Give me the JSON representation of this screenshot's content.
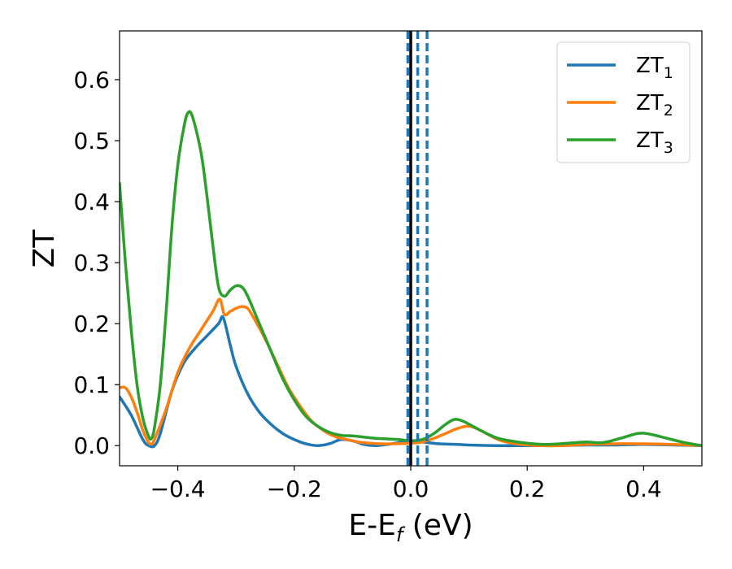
{
  "chart_data": {
    "type": "line",
    "xlabel": "E-E",
    "xlabel_sub": "f",
    "xlabel_unit": " (eV)",
    "ylabel": "ZT",
    "xlim": [
      -0.5,
      0.5
    ],
    "ylim": [
      -0.033,
      0.68
    ],
    "xticks": [
      -0.4,
      -0.2,
      0.0,
      0.2,
      0.4
    ],
    "xtick_labels": [
      "−0.4",
      "−0.2",
      "0.0",
      "0.2",
      "0.4"
    ],
    "yticks": [
      0.0,
      0.1,
      0.2,
      0.3,
      0.4,
      0.5,
      0.6
    ],
    "ytick_labels": [
      "0.0",
      "0.1",
      "0.2",
      "0.3",
      "0.4",
      "0.5",
      "0.6"
    ],
    "grid": false,
    "legend_position": "top-right",
    "series": [
      {
        "name": "ZT",
        "name_sub": "1",
        "color": "#1f77b4",
        "points": [
          [
            -0.5,
            0.08
          ],
          [
            -0.48,
            0.05
          ],
          [
            -0.46,
            0.01
          ],
          [
            -0.45,
            0.0
          ],
          [
            -0.44,
            0.0
          ],
          [
            -0.43,
            0.02
          ],
          [
            -0.41,
            0.09
          ],
          [
            -0.39,
            0.135
          ],
          [
            -0.37,
            0.16
          ],
          [
            -0.35,
            0.18
          ],
          [
            -0.33,
            0.2
          ],
          [
            -0.322,
            0.21
          ],
          [
            -0.31,
            0.165
          ],
          [
            -0.3,
            0.13
          ],
          [
            -0.28,
            0.085
          ],
          [
            -0.26,
            0.055
          ],
          [
            -0.24,
            0.035
          ],
          [
            -0.22,
            0.02
          ],
          [
            -0.2,
            0.01
          ],
          [
            -0.18,
            0.003
          ],
          [
            -0.16,
            0.0
          ],
          [
            -0.14,
            0.003
          ],
          [
            -0.12,
            0.01
          ],
          [
            -0.1,
            0.008
          ],
          [
            -0.08,
            0.002
          ],
          [
            -0.06,
            0.0
          ],
          [
            -0.04,
            0.002
          ],
          [
            -0.02,
            0.005
          ],
          [
            0.0,
            0.008
          ],
          [
            0.02,
            0.006
          ],
          [
            0.05,
            0.003
          ],
          [
            0.08,
            0.002
          ],
          [
            0.1,
            0.001
          ],
          [
            0.15,
            0.0
          ],
          [
            0.2,
            0.0
          ],
          [
            0.25,
            0.0
          ],
          [
            0.3,
            0.001
          ],
          [
            0.35,
            0.001
          ],
          [
            0.4,
            0.002
          ],
          [
            0.45,
            0.001
          ],
          [
            0.5,
            0.0
          ]
        ]
      },
      {
        "name": "ZT",
        "name_sub": "2",
        "color": "#ff7f0e",
        "points": [
          [
            -0.5,
            0.095
          ],
          [
            -0.49,
            0.095
          ],
          [
            -0.48,
            0.08
          ],
          [
            -0.47,
            0.055
          ],
          [
            -0.46,
            0.025
          ],
          [
            -0.45,
            0.005
          ],
          [
            -0.445,
            0.003
          ],
          [
            -0.44,
            0.01
          ],
          [
            -0.42,
            0.06
          ],
          [
            -0.4,
            0.12
          ],
          [
            -0.38,
            0.16
          ],
          [
            -0.36,
            0.19
          ],
          [
            -0.34,
            0.22
          ],
          [
            -0.328,
            0.24
          ],
          [
            -0.32,
            0.215
          ],
          [
            -0.31,
            0.22
          ],
          [
            -0.3,
            0.225
          ],
          [
            -0.29,
            0.228
          ],
          [
            -0.28,
            0.225
          ],
          [
            -0.27,
            0.21
          ],
          [
            -0.25,
            0.175
          ],
          [
            -0.23,
            0.135
          ],
          [
            -0.21,
            0.095
          ],
          [
            -0.19,
            0.065
          ],
          [
            -0.17,
            0.04
          ],
          [
            -0.15,
            0.025
          ],
          [
            -0.13,
            0.015
          ],
          [
            -0.11,
            0.01
          ],
          [
            -0.09,
            0.006
          ],
          [
            -0.07,
            0.004
          ],
          [
            -0.05,
            0.003
          ],
          [
            -0.03,
            0.003
          ],
          [
            0.0,
            0.004
          ],
          [
            0.02,
            0.006
          ],
          [
            0.04,
            0.012
          ],
          [
            0.06,
            0.02
          ],
          [
            0.08,
            0.028
          ],
          [
            0.1,
            0.032
          ],
          [
            0.12,
            0.025
          ],
          [
            0.15,
            0.01
          ],
          [
            0.18,
            0.003
          ],
          [
            0.22,
            0.0
          ],
          [
            0.26,
            0.0
          ],
          [
            0.3,
            0.002
          ],
          [
            0.35,
            0.003
          ],
          [
            0.4,
            0.003
          ],
          [
            0.45,
            0.002
          ],
          [
            0.5,
            0.0
          ]
        ]
      },
      {
        "name": "ZT",
        "name_sub": "3",
        "color": "#2ca02c",
        "points": [
          [
            -0.5,
            0.43
          ],
          [
            -0.49,
            0.3
          ],
          [
            -0.48,
            0.19
          ],
          [
            -0.47,
            0.1
          ],
          [
            -0.46,
            0.045
          ],
          [
            -0.45,
            0.015
          ],
          [
            -0.445,
            0.012
          ],
          [
            -0.44,
            0.03
          ],
          [
            -0.43,
            0.1
          ],
          [
            -0.42,
            0.22
          ],
          [
            -0.41,
            0.36
          ],
          [
            -0.4,
            0.46
          ],
          [
            -0.39,
            0.52
          ],
          [
            -0.383,
            0.545
          ],
          [
            -0.375,
            0.54
          ],
          [
            -0.36,
            0.48
          ],
          [
            -0.35,
            0.41
          ],
          [
            -0.34,
            0.33
          ],
          [
            -0.33,
            0.26
          ],
          [
            -0.32,
            0.245
          ],
          [
            -0.31,
            0.255
          ],
          [
            -0.3,
            0.262
          ],
          [
            -0.29,
            0.26
          ],
          [
            -0.28,
            0.245
          ],
          [
            -0.26,
            0.2
          ],
          [
            -0.24,
            0.155
          ],
          [
            -0.22,
            0.11
          ],
          [
            -0.2,
            0.075
          ],
          [
            -0.18,
            0.048
          ],
          [
            -0.16,
            0.032
          ],
          [
            -0.14,
            0.022
          ],
          [
            -0.12,
            0.017
          ],
          [
            -0.1,
            0.016
          ],
          [
            -0.08,
            0.014
          ],
          [
            -0.06,
            0.012
          ],
          [
            -0.04,
            0.011
          ],
          [
            -0.02,
            0.01
          ],
          [
            0.0,
            0.008
          ],
          [
            0.02,
            0.01
          ],
          [
            0.04,
            0.02
          ],
          [
            0.06,
            0.035
          ],
          [
            0.075,
            0.043
          ],
          [
            0.09,
            0.04
          ],
          [
            0.11,
            0.03
          ],
          [
            0.13,
            0.02
          ],
          [
            0.15,
            0.012
          ],
          [
            0.17,
            0.008
          ],
          [
            0.2,
            0.004
          ],
          [
            0.23,
            0.002
          ],
          [
            0.27,
            0.004
          ],
          [
            0.3,
            0.006
          ],
          [
            0.33,
            0.005
          ],
          [
            0.36,
            0.012
          ],
          [
            0.39,
            0.02
          ],
          [
            0.41,
            0.019
          ],
          [
            0.44,
            0.012
          ],
          [
            0.47,
            0.005
          ],
          [
            0.5,
            0.0
          ]
        ]
      }
    ],
    "vlines": [
      {
        "x": -0.005,
        "style": "dashed",
        "color": "#1f77b4"
      },
      {
        "x": 0.012,
        "style": "dashed",
        "color": "#1f77b4"
      },
      {
        "x": 0.028,
        "style": "dashed",
        "color": "#1f77b4"
      },
      {
        "x": 0.0,
        "style": "solid",
        "color": "#000000"
      }
    ]
  }
}
